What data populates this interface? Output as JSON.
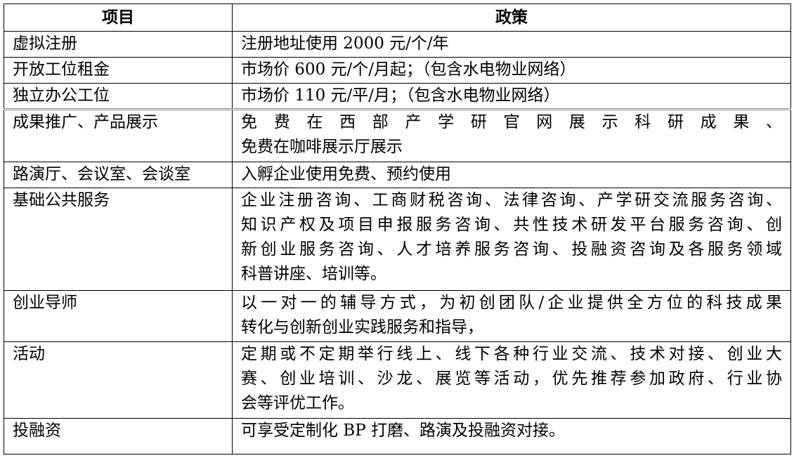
{
  "header": {
    "item": "项目",
    "policy": "政策"
  },
  "rows": [
    {
      "item": "虚拟注册",
      "lines": [
        "注册地址使用 2000 元/个/年"
      ]
    },
    {
      "item": "开放工位租金",
      "lines": [
        "市场价 600 元/个/月起；（包含水电物业网络）"
      ]
    },
    {
      "item": "独立办公工位",
      "lines": [
        "市场价 110 元/平/月；（包含水电物业网络）"
      ]
    },
    {
      "item": "成果推广、产品展示",
      "lines": [
        "免费在西部产学研官网展示科研成果、",
        "免费在咖啡展示厅展示"
      ]
    },
    {
      "item": "路演厅、会议室、会谈室",
      "lines": [
        "入孵企业使用免费、预约使用"
      ]
    },
    {
      "item": "基础公共服务",
      "lines": [
        "企业注册咨询、工商财税咨询、法律咨询、产学研交流服务咨询、",
        "知识产权及项目申报服务咨询、共性技术研发平台服务咨询、创",
        "新创业服务咨询、人才培养服务咨询、投融资咨询及各服务领域",
        "科普讲座、培训等。"
      ]
    },
    {
      "item": "创业导师",
      "lines": [
        "以一对一的辅导方式，为初创团队/企业提供全方位的科技成果",
        "转化与创新创业实践服务和指导，"
      ]
    },
    {
      "item": "活动",
      "lines": [
        "定期或不定期举行线上、线下各种行业交流、技术对接、创业大",
        "赛、创业培训、沙龙、展览等活动，优先推荐参加政府、行业协",
        "会等评优工作。"
      ]
    },
    {
      "item": "投融资",
      "lines": [
        "可享受定制化 BP 打磨、路演及投融资对接。"
      ]
    }
  ]
}
